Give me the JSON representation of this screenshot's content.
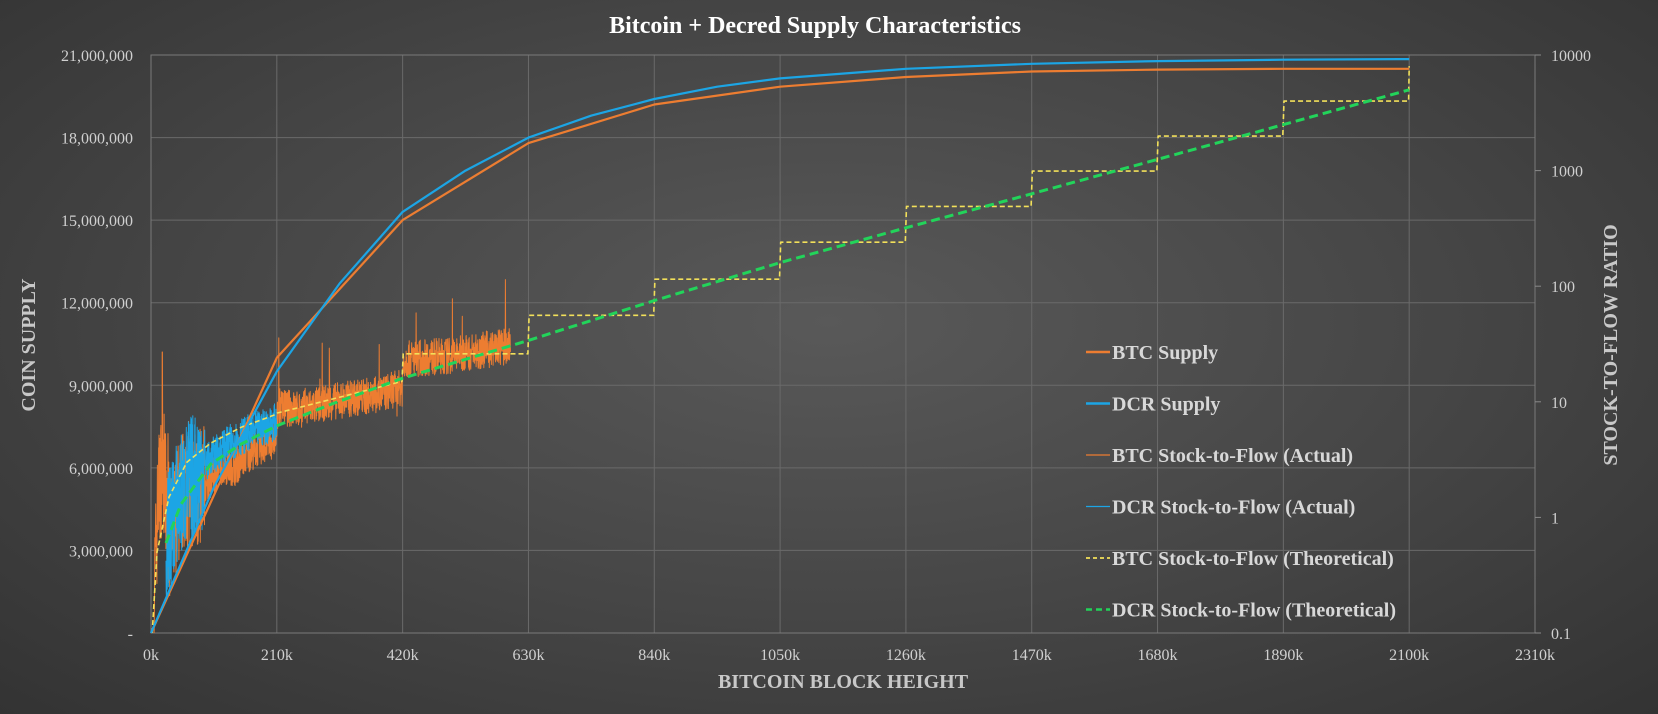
{
  "chart_data": {
    "type": "line",
    "title": "Bitcoin + Decred Supply Characteristics",
    "xlabel": "BITCOIN BLOCK HEIGHT",
    "ylabel": "COIN SUPPLY",
    "y2label": "STOCK-TO-FLOW RATIO",
    "x_range": [
      0,
      2310000
    ],
    "ylim": [
      0,
      21000000
    ],
    "y2lim": [
      0.1,
      10000
    ],
    "y2_scale": "log",
    "grid": true,
    "legend_position": "center-right",
    "x_ticks": [
      {
        "value": 0,
        "label": "0k"
      },
      {
        "value": 210000,
        "label": "210k"
      },
      {
        "value": 420000,
        "label": "420k"
      },
      {
        "value": 630000,
        "label": "630k"
      },
      {
        "value": 840000,
        "label": "840k"
      },
      {
        "value": 1050000,
        "label": "1050k"
      },
      {
        "value": 1260000,
        "label": "1260k"
      },
      {
        "value": 1470000,
        "label": "1470k"
      },
      {
        "value": 1680000,
        "label": "1680k"
      },
      {
        "value": 1890000,
        "label": "1890k"
      },
      {
        "value": 2100000,
        "label": "2100k"
      },
      {
        "value": 2310000,
        "label": "2310k"
      }
    ],
    "y_ticks": [
      {
        "value": 0,
        "label": "-"
      },
      {
        "value": 3000000,
        "label": "3,000,000"
      },
      {
        "value": 6000000,
        "label": "6,000,000"
      },
      {
        "value": 9000000,
        "label": "9,000,000"
      },
      {
        "value": 12000000,
        "label": "12,000,000"
      },
      {
        "value": 15000000,
        "label": "15,000,000"
      },
      {
        "value": 18000000,
        "label": "18,000,000"
      },
      {
        "value": 21000000,
        "label": "21,000,000"
      }
    ],
    "y2_ticks": [
      {
        "value": 0.1,
        "label": "0.1"
      },
      {
        "value": 1,
        "label": "1"
      },
      {
        "value": 10,
        "label": "10"
      },
      {
        "value": 100,
        "label": "100"
      },
      {
        "value": 1000,
        "label": "1000"
      },
      {
        "value": 10000,
        "label": "10000"
      }
    ],
    "series": [
      {
        "name": "BTC Supply",
        "axis": "left",
        "color": "#ED7D31",
        "style": "solid",
        "x": [
          0,
          210000,
          420000,
          630000,
          840000,
          1050000,
          1260000,
          1470000,
          1680000,
          1890000,
          2100000
        ],
        "y": [
          0,
          10000000,
          15000000,
          17800000,
          19200000,
          19850000,
          20200000,
          20400000,
          20470000,
          20500000,
          20500000
        ]
      },
      {
        "name": "DCR Supply",
        "axis": "left",
        "color": "#1CA5E5",
        "style": "solid",
        "x": [
          0,
          105000,
          210000,
          315000,
          420000,
          525000,
          630000,
          735000,
          840000,
          945000,
          1050000,
          1260000,
          1470000,
          1680000,
          1890000,
          2100000
        ],
        "y": [
          0,
          5300000,
          9500000,
          12700000,
          15300000,
          16800000,
          18000000,
          18800000,
          19400000,
          19850000,
          20150000,
          20500000,
          20680000,
          20780000,
          20830000,
          20850000
        ]
      },
      {
        "name": "BTC Stock-to-Flow (Actual)",
        "axis": "right",
        "color": "#ED7D31",
        "style": "thin-noisy",
        "x": [
          5000,
          12000,
          20000,
          30000,
          45000,
          60000,
          80000,
          100000,
          120000,
          140000,
          160000,
          180000,
          200000,
          209000,
          212000,
          250000,
          300000,
          350000,
          380000,
          410000,
          419000,
          422000,
          450000,
          500000,
          550000,
          600000
        ],
        "y": [
          0.2,
          1.5,
          3,
          0.6,
          1.3,
          2,
          1.6,
          2.2,
          2.8,
          2.7,
          3.5,
          4,
          4.5,
          5,
          9,
          8.6,
          10,
          11,
          11.5,
          13,
          13,
          23,
          24,
          25,
          28,
          30
        ]
      },
      {
        "name": "DCR Stock-to-Flow (Actual)",
        "axis": "right",
        "color": "#1CA5E5",
        "style": "thin-noisy",
        "x": [
          25000,
          40000,
          60000,
          80000,
          100000,
          120000,
          140000,
          160000,
          180000,
          200000,
          210000
        ],
        "y": [
          0.6,
          1.2,
          2,
          2.6,
          3.3,
          4,
          4.7,
          5.3,
          5.8,
          6.4,
          6.8
        ]
      },
      {
        "name": "BTC Stock-to-Flow (Theoretical)",
        "axis": "right",
        "color": "#F2E05A",
        "style": "dashed-thin",
        "x": [
          2000,
          10000,
          30000,
          60000,
          100000,
          150000,
          209000,
          211000,
          419000,
          421000,
          629000,
          631000,
          839000,
          841000,
          1049000,
          1051000,
          1259000,
          1261000,
          1469000,
          1471000,
          1679000,
          1681000,
          1889000,
          1891000,
          2099000,
          2100000
        ],
        "y": [
          0.1,
          0.5,
          1.5,
          3,
          4.4,
          6,
          7.8,
          8,
          15,
          26,
          26,
          56,
          56,
          115,
          115,
          240,
          240,
          490,
          490,
          990,
          990,
          1990,
          1990,
          3990,
          3990,
          8000
        ]
      },
      {
        "name": "DCR Stock-to-Flow (Theoretical)",
        "axis": "right",
        "color": "#22D45A",
        "style": "dashed-thick",
        "x": [
          25000,
          50000,
          100000,
          150000,
          210000,
          300000,
          420000,
          630000,
          840000,
          1050000,
          1260000,
          1470000,
          1680000,
          1890000,
          2100000
        ],
        "y": [
          0.6,
          1.3,
          2.9,
          4.3,
          6.2,
          9.5,
          16,
          34,
          75,
          160,
          320,
          630,
          1250,
          2500,
          5000
        ]
      }
    ]
  }
}
